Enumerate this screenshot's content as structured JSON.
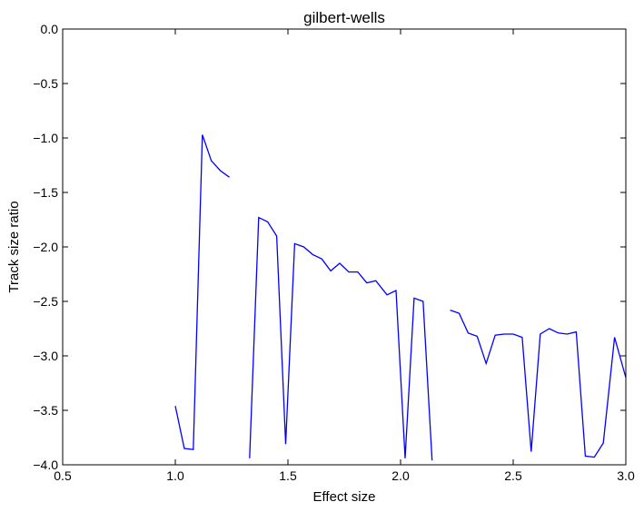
{
  "chart_data": {
    "type": "line",
    "title": "gilbert-wells",
    "xlabel": "Effect size",
    "ylabel": "Track size ratio",
    "xlim": [
      0.5,
      3.0
    ],
    "ylim": [
      -4.0,
      0.0
    ],
    "xticks": [
      0.5,
      1.0,
      1.5,
      2.0,
      2.5,
      3.0
    ],
    "xtick_labels": [
      "0.5",
      "1.0",
      "1.5",
      "2.0",
      "2.5",
      "3.0"
    ],
    "yticks": [
      0.0,
      -0.5,
      -1.0,
      -1.5,
      -2.0,
      -2.5,
      -3.0,
      -3.5,
      -4.0
    ],
    "ytick_labels": [
      "0.0",
      "−0.5",
      "−1.0",
      "−1.5",
      "−2.0",
      "−2.5",
      "−3.0",
      "−3.5",
      "−4.0"
    ],
    "grid": false,
    "line_color": "#0000ff",
    "series": [
      {
        "segments": [
          [
            [
              1.0,
              -3.46
            ],
            [
              1.04,
              -3.85
            ],
            [
              1.08,
              -3.86
            ],
            [
              1.12,
              -0.97
            ],
            [
              1.16,
              -1.21
            ],
            [
              1.2,
              -1.3
            ],
            [
              1.24,
              -1.36
            ]
          ],
          [
            [
              1.33,
              -3.94
            ],
            [
              1.37,
              -1.73
            ],
            [
              1.41,
              -1.77
            ],
            [
              1.45,
              -1.9
            ],
            [
              1.49,
              -3.81
            ],
            [
              1.53,
              -1.97
            ],
            [
              1.57,
              -2.0
            ],
            [
              1.61,
              -2.07
            ],
            [
              1.65,
              -2.11
            ],
            [
              1.69,
              -2.22
            ],
            [
              1.73,
              -2.15
            ],
            [
              1.77,
              -2.23
            ],
            [
              1.81,
              -2.23
            ],
            [
              1.85,
              -2.33
            ],
            [
              1.89,
              -2.31
            ],
            [
              1.94,
              -2.44
            ],
            [
              1.98,
              -2.4
            ],
            [
              2.02,
              -3.94
            ],
            [
              2.06,
              -2.47
            ],
            [
              2.1,
              -2.5
            ],
            [
              2.14,
              -3.96
            ]
          ],
          [
            [
              2.22,
              -2.58
            ],
            [
              2.26,
              -2.61
            ],
            [
              2.3,
              -2.79
            ],
            [
              2.34,
              -2.82
            ],
            [
              2.38,
              -3.07
            ],
            [
              2.42,
              -2.81
            ],
            [
              2.46,
              -2.8
            ],
            [
              2.5,
              -2.8
            ],
            [
              2.54,
              -2.83
            ],
            [
              2.58,
              -3.88
            ],
            [
              2.62,
              -2.8
            ],
            [
              2.66,
              -2.75
            ],
            [
              2.7,
              -2.79
            ],
            [
              2.74,
              -2.8
            ],
            [
              2.78,
              -2.78
            ],
            [
              2.82,
              -3.92
            ],
            [
              2.86,
              -3.93
            ],
            [
              2.9,
              -3.8
            ],
            [
              2.95,
              -2.83
            ],
            [
              3.0,
              -3.2
            ]
          ]
        ]
      }
    ]
  }
}
